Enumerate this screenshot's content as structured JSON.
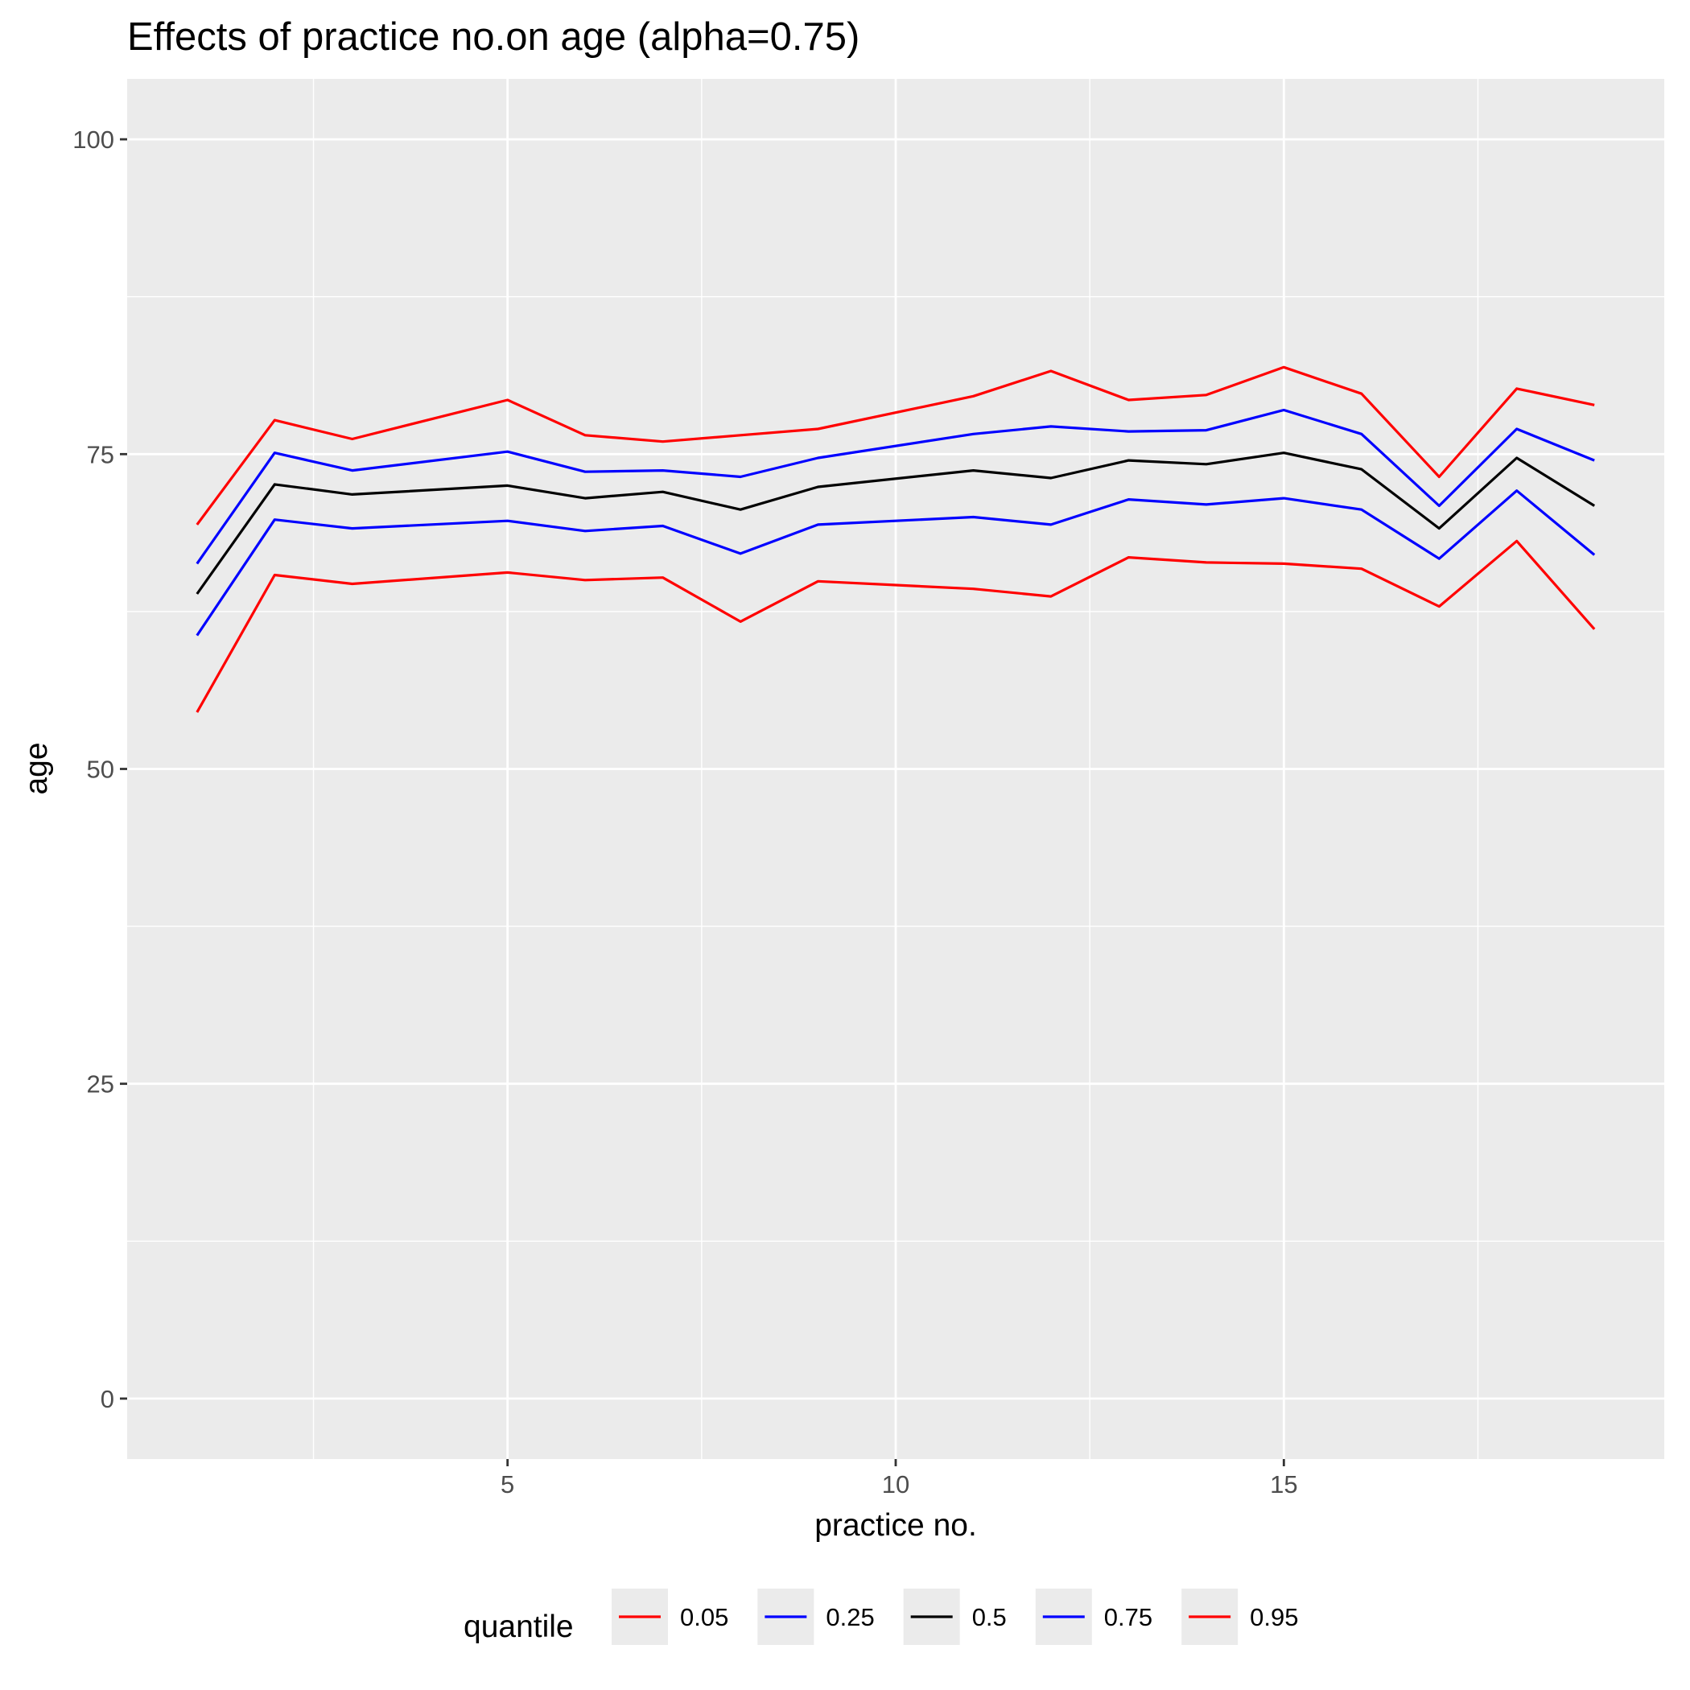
{
  "chart_data": {
    "type": "line",
    "title": "Effects of practice no.on age (alpha=0.75)",
    "xlabel": "practice no.",
    "ylabel": "age",
    "xlim": [
      0.1,
      19.9
    ],
    "ylim": [
      -4.8,
      104.8
    ],
    "x_ticks": [
      5,
      10,
      15
    ],
    "x_tick_labels": [
      "5",
      "10",
      "15"
    ],
    "y_ticks": [
      0,
      25,
      50,
      75,
      100
    ],
    "y_tick_labels": [
      "0",
      "25",
      "50",
      "75",
      "100"
    ],
    "grid": true,
    "legend": {
      "title": "quantile",
      "position": "bottom"
    },
    "x": [
      1,
      2,
      3,
      5,
      6,
      7,
      8,
      9,
      11,
      12,
      13,
      14,
      15,
      16,
      17,
      18,
      19
    ],
    "series": [
      {
        "name": "0.05",
        "color": "#ff0000",
        "values": [
          54.5,
          65.4,
          64.7,
          65.6,
          65.0,
          65.2,
          61.7,
          64.9,
          64.3,
          63.7,
          66.8,
          66.4,
          66.3,
          65.9,
          62.9,
          68.1,
          61.1
        ]
      },
      {
        "name": "0.25",
        "color": "#0000ff",
        "values": [
          60.6,
          69.8,
          69.1,
          69.7,
          68.9,
          69.3,
          67.1,
          69.4,
          70.0,
          69.4,
          71.4,
          71.0,
          71.5,
          70.6,
          66.7,
          72.1,
          67.0
        ]
      },
      {
        "name": "0.5",
        "color": "#000000",
        "values": [
          63.9,
          72.6,
          71.8,
          72.5,
          71.5,
          72.0,
          70.6,
          72.4,
          73.7,
          73.1,
          74.5,
          74.2,
          75.1,
          73.8,
          69.1,
          74.7,
          70.9
        ]
      },
      {
        "name": "0.75",
        "color": "#0000ff",
        "values": [
          66.3,
          75.1,
          73.7,
          75.2,
          73.6,
          73.7,
          73.2,
          74.7,
          76.6,
          77.2,
          76.8,
          76.9,
          78.5,
          76.6,
          70.9,
          77.0,
          74.5
        ]
      },
      {
        "name": "0.95",
        "color": "#ff0000",
        "values": [
          69.4,
          77.7,
          76.2,
          79.3,
          76.5,
          76.0,
          76.5,
          77.0,
          79.6,
          81.6,
          79.3,
          79.7,
          81.9,
          79.8,
          73.2,
          80.2,
          78.9
        ]
      }
    ]
  }
}
